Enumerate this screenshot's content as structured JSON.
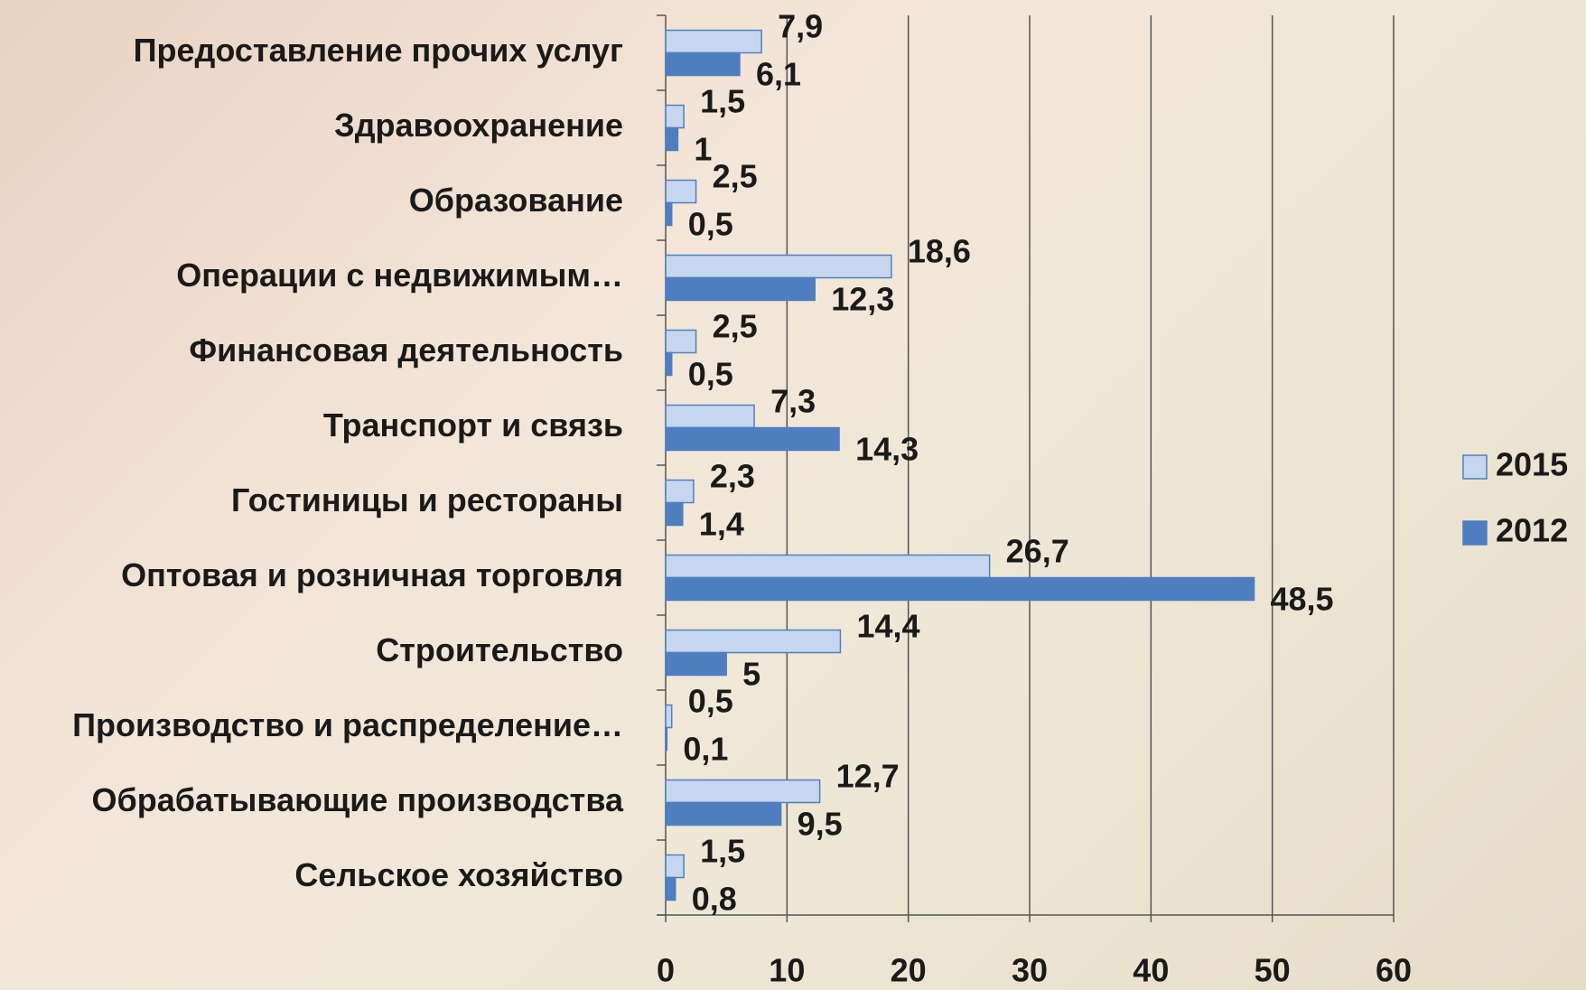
{
  "chart_data": {
    "type": "bar",
    "orientation": "horizontal",
    "categories": [
      "Предоставление прочих услуг",
      "Здравоохранение",
      "Образование",
      "Операции с недвижимым…",
      "Финансовая деятельность",
      "Транспорт и связь",
      "Гостиницы и рестораны",
      "Оптовая и розничная торговля",
      "Строительство",
      "Производство и распределение…",
      "Обрабатывающие производства",
      "Сельское хозяйство"
    ],
    "series": [
      {
        "name": "2015",
        "color": "#c6d6ee",
        "values": [
          7.9,
          1.5,
          2.5,
          18.6,
          2.5,
          7.3,
          2.3,
          26.7,
          14.4,
          0.5,
          12.7,
          1.5
        ],
        "value_labels": [
          "7,9",
          "1,5",
          "2,5",
          "18,6",
          "2,5",
          "7,3",
          "2,3",
          "26,7",
          "14,4",
          "0,5",
          "12,7",
          "1,5"
        ]
      },
      {
        "name": "2012",
        "color": "#4f7ec0",
        "values": [
          6.1,
          1,
          0.5,
          12.3,
          0.5,
          14.3,
          1.4,
          48.5,
          5,
          0.1,
          9.5,
          0.8
        ],
        "value_labels": [
          "6,1",
          "1",
          "0,5",
          "12,3",
          "0,5",
          "14,3",
          "1,4",
          "48,5",
          "5",
          "0,1",
          "9,5",
          "0,8"
        ]
      }
    ],
    "xlim": [
      0,
      60
    ],
    "xticks": [
      0,
      10,
      20,
      30,
      40,
      50,
      60
    ],
    "grid": true,
    "legend": "right"
  }
}
